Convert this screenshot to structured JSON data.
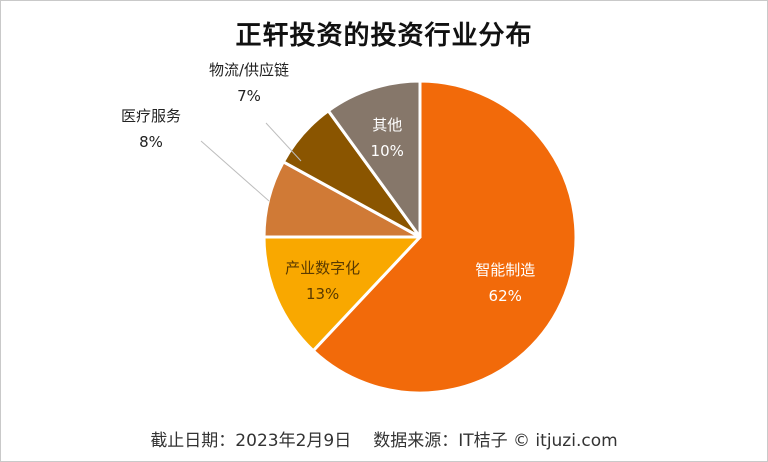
{
  "chart_data": {
    "type": "pie",
    "title": "正轩投资的投资行业分布",
    "slices": [
      {
        "label": "智能制造",
        "value": 62,
        "display": "62%",
        "color": "#F26A0A",
        "text_color": "#ffffff",
        "inside": true
      },
      {
        "label": "产业数字化",
        "value": 13,
        "display": "13%",
        "color": "#F9A800",
        "text_color": "#5a3a00",
        "inside": true
      },
      {
        "label": "医疗服务",
        "value": 8,
        "display": "8%",
        "color": "#D07A36",
        "text_color": "#222222",
        "inside": false
      },
      {
        "label": "物流/供应链",
        "value": 7,
        "display": "7%",
        "color": "#8A5500",
        "text_color": "#222222",
        "inside": false
      },
      {
        "label": "其他",
        "value": 10,
        "display": "10%",
        "color": "#86776A",
        "text_color": "#ffffff",
        "inside": true
      }
    ]
  },
  "footer": {
    "date": "截止日期：2023年2月9日",
    "source": "数据来源：IT桔子 © itjuzi.com"
  }
}
